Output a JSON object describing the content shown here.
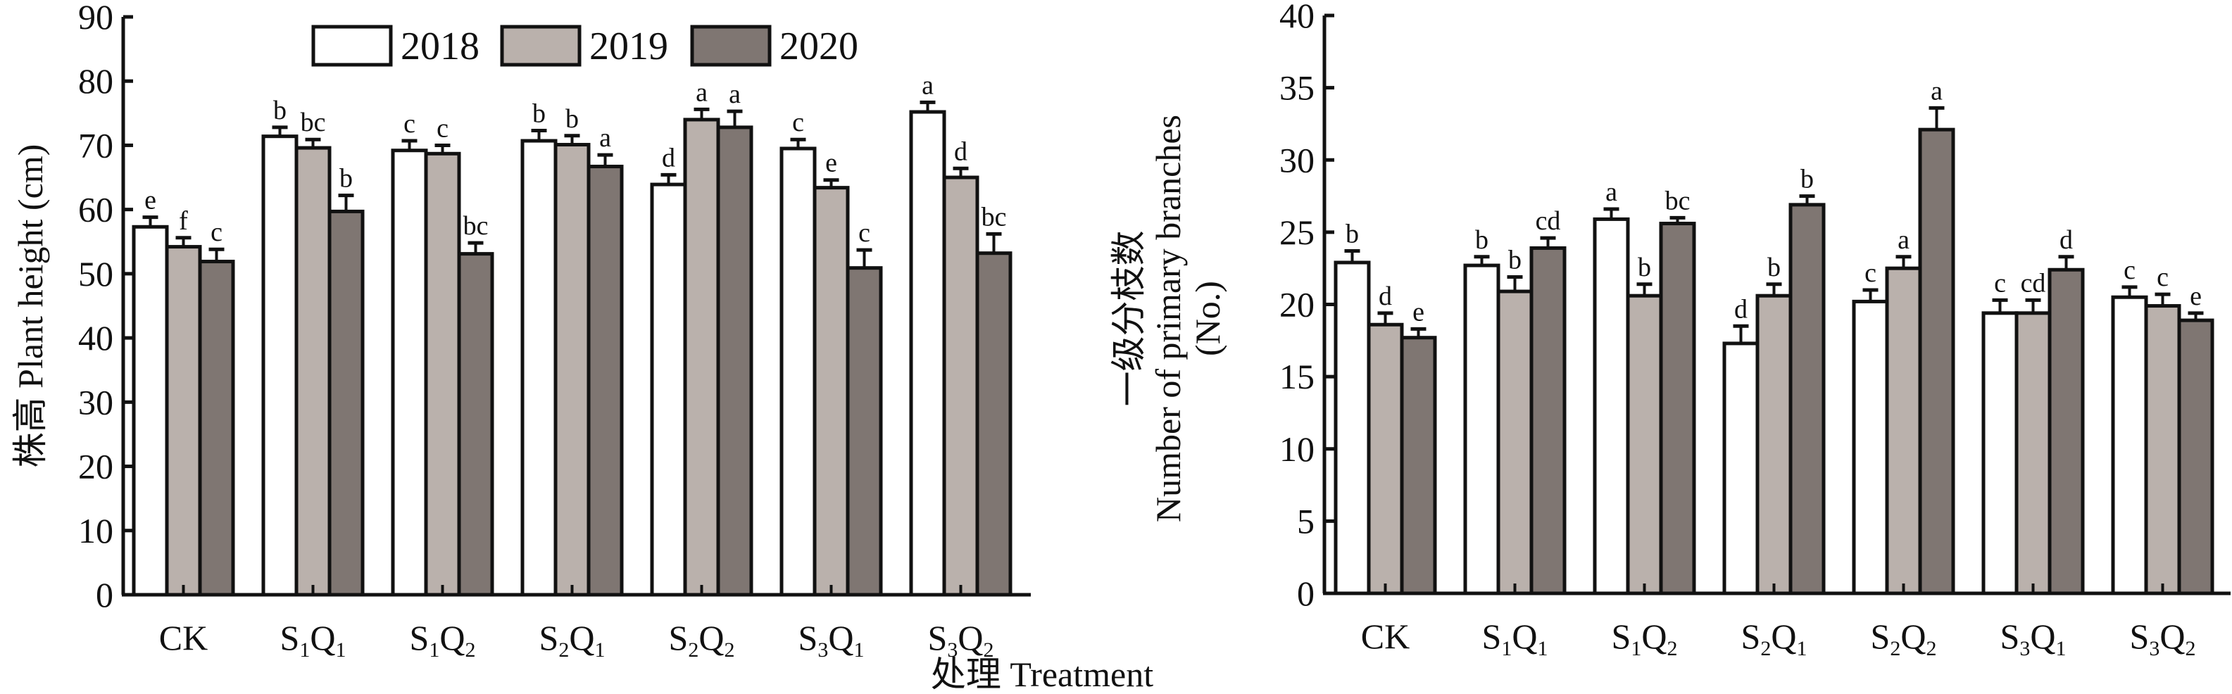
{
  "xlabel": "处理 Treatment",
  "legend": [
    {
      "label": "2018",
      "color": "#FFFFFF"
    },
    {
      "label": "2019",
      "color": "#BAB1AC"
    },
    {
      "label": "2020",
      "color": "#7F7672"
    }
  ],
  "chart_data": [
    {
      "type": "bar",
      "title": "",
      "xlabel": "处理 Treatment",
      "ylabel": "株高 Plant height (cm)",
      "ylim": [
        0,
        90
      ],
      "yticks": [
        0,
        10,
        20,
        30,
        40,
        50,
        60,
        70,
        80,
        90
      ],
      "categories": [
        {
          "main": "CK",
          "sub": []
        },
        {
          "main": "S1Q1",
          "parts": [
            "S",
            "1",
            "Q",
            "1"
          ]
        },
        {
          "main": "S1Q2",
          "parts": [
            "S",
            "1",
            "Q",
            "2"
          ]
        },
        {
          "main": "S2Q1",
          "parts": [
            "S",
            "2",
            "Q",
            "1"
          ]
        },
        {
          "main": "S2Q2",
          "parts": [
            "S",
            "2",
            "Q",
            "2"
          ]
        },
        {
          "main": "S3Q1",
          "parts": [
            "S",
            "3",
            "Q",
            "1"
          ]
        },
        {
          "main": "S3Q2",
          "parts": [
            "S",
            "3",
            "Q",
            "2"
          ]
        }
      ],
      "legend_position": "top",
      "series": [
        {
          "name": "2018",
          "values": [
            57.3,
            71.4,
            69.2,
            70.7,
            63.9,
            69.5,
            75.2
          ],
          "error_top": [
            58.8,
            72.8,
            70.7,
            72.3,
            65.4,
            70.9,
            76.7
          ],
          "letters": [
            "e",
            "b",
            "c",
            "b",
            "d",
            "c",
            "a"
          ]
        },
        {
          "name": "2019",
          "values": [
            54.2,
            69.6,
            68.7,
            70.1,
            74.0,
            63.4,
            65.0
          ],
          "error_top": [
            55.6,
            70.9,
            70.0,
            71.5,
            75.6,
            64.6,
            66.4
          ],
          "letters": [
            "f",
            "bc",
            "c",
            "b",
            "a",
            "e",
            "d"
          ]
        },
        {
          "name": "2020",
          "values": [
            51.9,
            59.7,
            53.1,
            66.7,
            72.8,
            50.9,
            53.2
          ],
          "error_top": [
            53.8,
            62.2,
            54.8,
            68.5,
            75.3,
            53.7,
            56.2
          ],
          "letters": [
            "c",
            "b",
            "bc",
            "a",
            "a",
            "c",
            "bc"
          ]
        }
      ]
    },
    {
      "type": "bar",
      "title": "",
      "xlabel": "处理 Treatment",
      "ylabel_lines": [
        "一级分枝数",
        "Number of primary branches",
        "(No.)"
      ],
      "ylabel": "一级分枝数 Number of primary branches (No.)",
      "ylim": [
        0,
        40
      ],
      "yticks": [
        0,
        5,
        10,
        15,
        20,
        25,
        30,
        35,
        40
      ],
      "categories": [
        {
          "main": "CK",
          "sub": []
        },
        {
          "main": "S1Q1",
          "parts": [
            "S",
            "1",
            "Q",
            "1"
          ]
        },
        {
          "main": "S1Q2",
          "parts": [
            "S",
            "1",
            "Q",
            "2"
          ]
        },
        {
          "main": "S2Q1",
          "parts": [
            "S",
            "2",
            "Q",
            "1"
          ]
        },
        {
          "main": "S2Q2",
          "parts": [
            "S",
            "2",
            "Q",
            "2"
          ]
        },
        {
          "main": "S3Q1",
          "parts": [
            "S",
            "3",
            "Q",
            "1"
          ]
        },
        {
          "main": "S3Q2",
          "parts": [
            "S",
            "3",
            "Q",
            "2"
          ]
        }
      ],
      "series": [
        {
          "name": "2018",
          "values": [
            22.9,
            22.7,
            25.9,
            17.3,
            20.2,
            19.4,
            20.5
          ],
          "error_top": [
            23.7,
            23.3,
            26.6,
            18.5,
            21.0,
            20.3,
            21.2
          ],
          "letters": [
            "b",
            "b",
            "a",
            "d",
            "c",
            "c",
            "c"
          ]
        },
        {
          "name": "2019",
          "values": [
            18.6,
            20.9,
            20.6,
            20.6,
            22.5,
            19.4,
            19.9
          ],
          "error_top": [
            19.4,
            21.9,
            21.4,
            21.4,
            23.3,
            20.3,
            20.7
          ],
          "letters": [
            "d",
            "b",
            "b",
            "b",
            "a",
            "cd",
            "c"
          ]
        },
        {
          "name": "2020",
          "values": [
            17.7,
            23.9,
            25.6,
            26.9,
            32.1,
            22.4,
            18.9
          ],
          "error_top": [
            18.3,
            24.6,
            26.0,
            27.5,
            33.6,
            23.3,
            19.4
          ],
          "letters": [
            "e",
            "cd",
            "bc",
            "b",
            "a",
            "d",
            "e"
          ]
        }
      ]
    }
  ]
}
